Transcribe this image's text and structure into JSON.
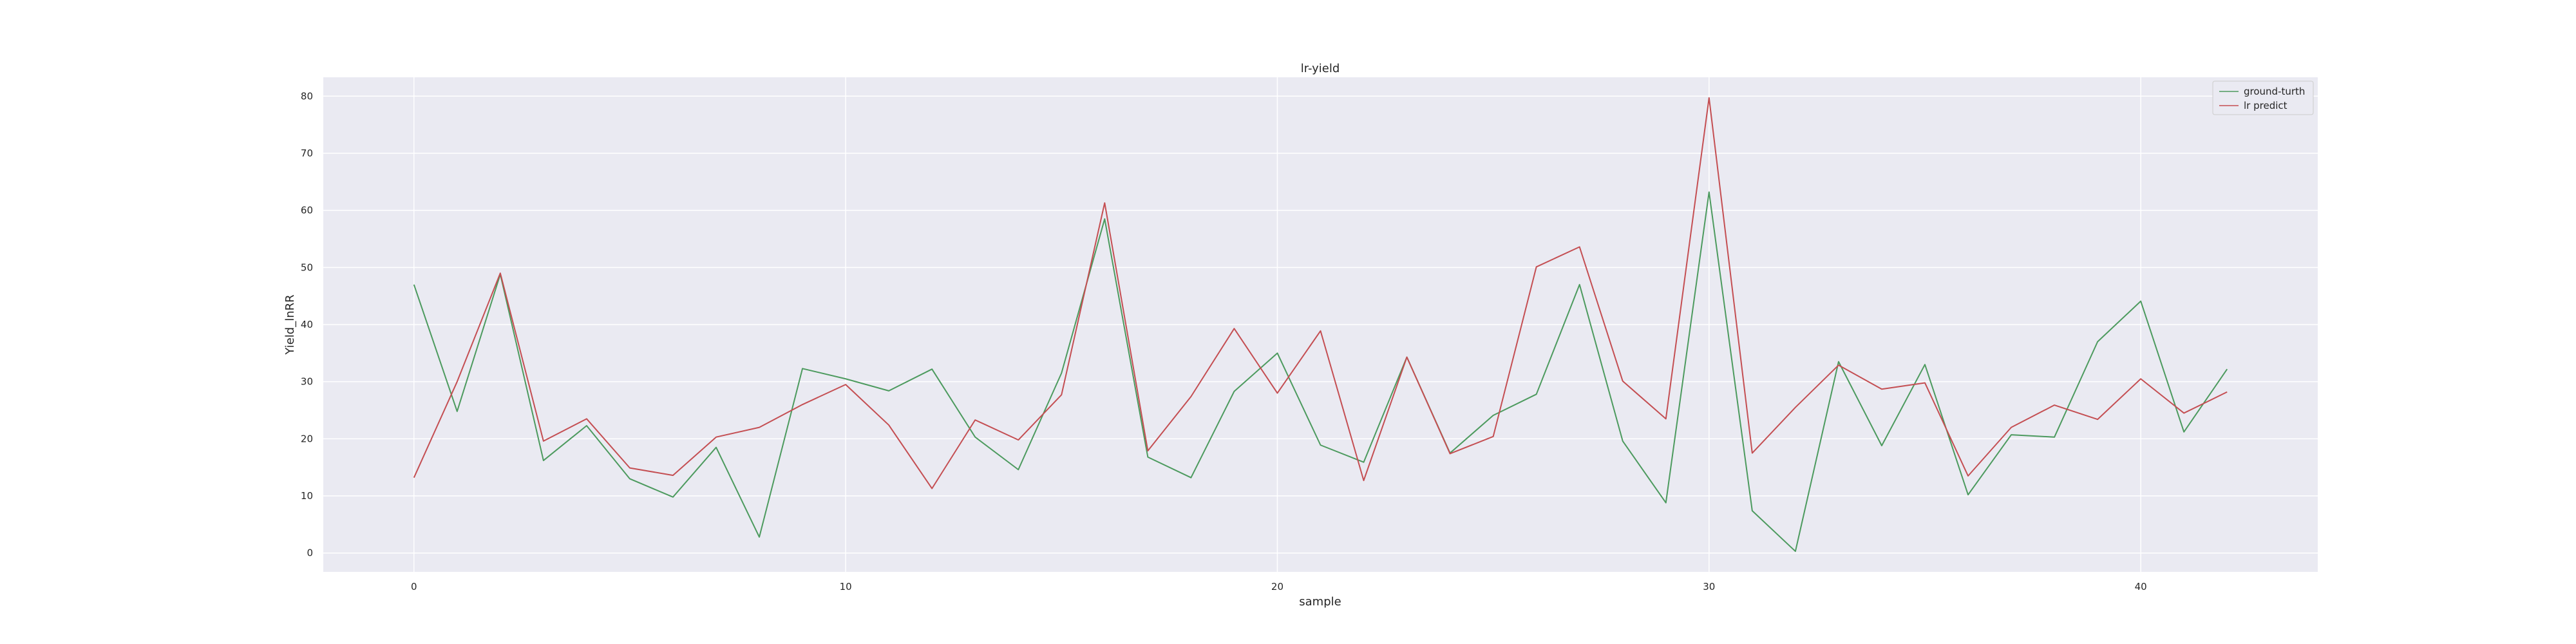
{
  "chart_data": {
    "type": "line",
    "title": "lr-yield",
    "xlabel": "sample",
    "ylabel": "Yield_lnRR",
    "xlim": [
      -2.1,
      44.1
    ],
    "ylim": [
      -3.3,
      83.3
    ],
    "xticks": [
      0,
      10,
      20,
      30,
      40
    ],
    "yticks": [
      0,
      10,
      20,
      30,
      40,
      50,
      60,
      70,
      80
    ],
    "grid": true,
    "legend_position": "top-right",
    "x": [
      0,
      1,
      2,
      3,
      4,
      5,
      6,
      7,
      8,
      9,
      10,
      11,
      12,
      13,
      14,
      15,
      16,
      17,
      18,
      19,
      20,
      21,
      22,
      23,
      24,
      25,
      26,
      27,
      28,
      29,
      30,
      31,
      32,
      33,
      34,
      35,
      36,
      37,
      38,
      39,
      40,
      41,
      42
    ],
    "series": [
      {
        "name": "ground-turth",
        "color": "#4c9a5e",
        "values": [
          47.0,
          24.8,
          48.8,
          16.2,
          22.3,
          13.0,
          9.8,
          18.5,
          2.8,
          32.3,
          30.5,
          28.4,
          32.2,
          20.3,
          14.6,
          31.5,
          58.5,
          16.8,
          13.2,
          28.3,
          35.0,
          18.9,
          15.9,
          34.3,
          17.5,
          24.1,
          27.8,
          47.0,
          19.6,
          8.8,
          63.2,
          7.4,
          0.3,
          33.5,
          18.8,
          33.0,
          10.2,
          20.7,
          20.3,
          37.0,
          44.1,
          21.2,
          32.2
        ]
      },
      {
        "name": "lr predict",
        "color": "#c44e52",
        "values": [
          13.2,
          30.0,
          49.0,
          19.6,
          23.5,
          14.9,
          13.6,
          20.3,
          22.0,
          26.0,
          29.5,
          22.4,
          11.3,
          23.3,
          19.8,
          27.7,
          61.3,
          17.9,
          27.4,
          39.3,
          28.0,
          38.9,
          12.7,
          34.3,
          17.4,
          20.4,
          50.1,
          53.6,
          30.1,
          23.5,
          79.7,
          17.5,
          25.5,
          32.9,
          28.7,
          29.8,
          13.5,
          22.0,
          25.9,
          23.4,
          30.5,
          24.5,
          28.2
        ]
      }
    ]
  }
}
